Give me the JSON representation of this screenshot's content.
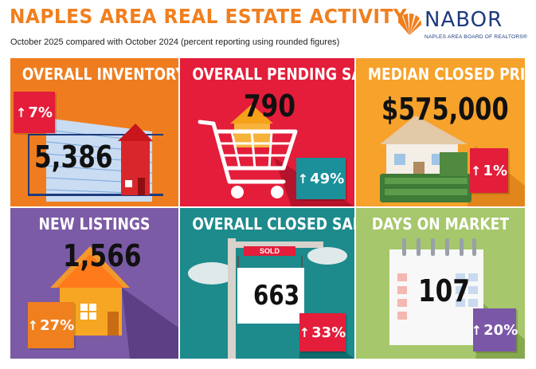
{
  "header": {
    "title": "NAPLES AREA REAL ESTATE ACTIVITY",
    "subtitle": "October 2025 compared with October 2024 (percent reporting using rounded figures)"
  },
  "logo": {
    "word": "NABOR",
    "subtitle": "NAPLES AREA BOARD OF REALTORS®"
  },
  "colors": {
    "accent_orange": "#f07f1e",
    "inventory": "#ef7d1f",
    "pending": "#e31d3a",
    "median": "#f6a22b",
    "listings": "#7c5ba6",
    "closed": "#1d8a8c",
    "days": "#a6c76b",
    "badge_red": "#e31d3a",
    "badge_teal": "#1b8f9a",
    "badge_purple": "#7b57a8"
  },
  "tiles": {
    "inventory": {
      "title": "OVERALL INVENTORY",
      "value": "5,386",
      "change": "7%",
      "arrow": "↑"
    },
    "pending": {
      "title": "OVERALL PENDING SALES",
      "value": "790",
      "change": "49%",
      "arrow": "↑"
    },
    "median": {
      "title": "MEDIAN CLOSED PRICE",
      "value": "$575,000",
      "change": "1%",
      "arrow": "↑"
    },
    "listings": {
      "title": "NEW LISTINGS",
      "value": "1,566",
      "change": "27%",
      "arrow": "↑"
    },
    "closed": {
      "title": "OVERALL CLOSED SALES",
      "value": "663",
      "change": "33%",
      "arrow": "↑",
      "sign_label": "SOLD"
    },
    "days": {
      "title": "DAYS ON MARKET",
      "value": "107",
      "change": "20%",
      "arrow": "↑"
    }
  }
}
